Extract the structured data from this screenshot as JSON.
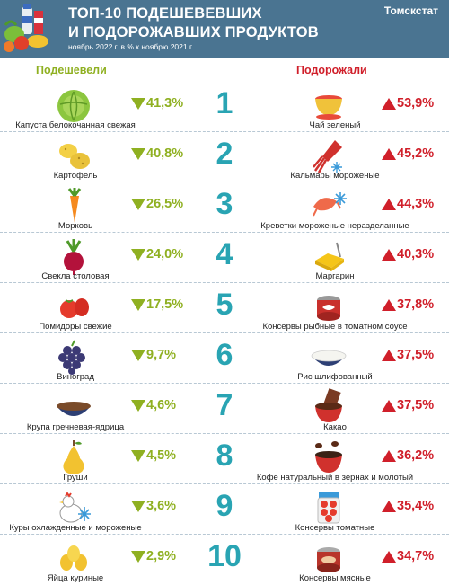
{
  "header": {
    "title_line1": "ТОП-10 ПОДЕШЕВЕВШИХ",
    "title_line2": "И ПОДОРОЖАВШИХ ПРОДУКТОВ",
    "subtitle": "ноябрь 2022 г. в % к ноябрю 2021 г.",
    "source": "Томскстат",
    "background_color": "#4a7491"
  },
  "columns": {
    "cheaper_title": "Подешевели",
    "pricier_title": "Подорожали",
    "cheaper_color": "#8fb021",
    "pricier_color": "#d01f2a",
    "rank_color": "#29a4b3"
  },
  "rows": [
    {
      "rank": "1",
      "cheaper": {
        "name": "Капуста белокочанная свежая",
        "value": "41,3%",
        "icon": "cabbage-icon"
      },
      "pricier": {
        "name": "Чай зеленый",
        "value": "53,9%",
        "icon": "tea-cup-icon"
      }
    },
    {
      "rank": "2",
      "cheaper": {
        "name": "Картофель",
        "value": "40,8%",
        "icon": "potato-icon"
      },
      "pricier": {
        "name": "Кальмары мороженые",
        "value": "45,2%",
        "icon": "squid-icon"
      }
    },
    {
      "rank": "3",
      "cheaper": {
        "name": "Морковь",
        "value": "26,5%",
        "icon": "carrot-icon"
      },
      "pricier": {
        "name": "Креветки мороженые неразделанные",
        "value": "44,3%",
        "icon": "shrimp-icon"
      }
    },
    {
      "rank": "4",
      "cheaper": {
        "name": "Свекла столовая",
        "value": "24,0%",
        "icon": "beet-icon"
      },
      "pricier": {
        "name": "Маргарин",
        "value": "40,3%",
        "icon": "margarine-icon"
      }
    },
    {
      "rank": "5",
      "cheaper": {
        "name": "Помидоры свежие",
        "value": "17,5%",
        "icon": "tomato-icon"
      },
      "pricier": {
        "name": "Консервы рыбные в томатном соусе",
        "value": "37,8%",
        "icon": "fish-can-icon"
      }
    },
    {
      "rank": "6",
      "cheaper": {
        "name": "Виноград",
        "value": "9,7%",
        "icon": "grapes-icon"
      },
      "pricier": {
        "name": "Рис шлифованный",
        "value": "37,5%",
        "icon": "rice-bowl-icon"
      }
    },
    {
      "rank": "7",
      "cheaper": {
        "name": "Крупа гречневая-ядрица",
        "value": "4,6%",
        "icon": "buckwheat-bowl-icon"
      },
      "pricier": {
        "name": "Какао",
        "value": "37,5%",
        "icon": "cocoa-icon"
      }
    },
    {
      "rank": "8",
      "cheaper": {
        "name": "Груши",
        "value": "4,5%",
        "icon": "pear-icon"
      },
      "pricier": {
        "name": "Кофе натуральный в зернах и молотый",
        "value": "36,2%",
        "icon": "coffee-icon"
      }
    },
    {
      "rank": "9",
      "cheaper": {
        "name": "Куры охлажденные и мороженые",
        "value": "3,6%",
        "icon": "chicken-icon"
      },
      "pricier": {
        "name": "Консервы томатные",
        "value": "35,4%",
        "icon": "tomato-jar-icon"
      }
    },
    {
      "rank": "10",
      "cheaper": {
        "name": "Яйца куриные",
        "value": "2,9%",
        "icon": "eggs-icon"
      },
      "pricier": {
        "name": "Консервы мясные",
        "value": "34,7%",
        "icon": "meat-can-icon"
      }
    }
  ]
}
